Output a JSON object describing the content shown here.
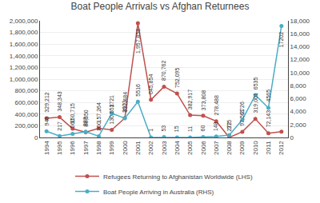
{
  "chart_data": {
    "type": "line",
    "title": "Boat People Arrivals vs Afghan Returnees",
    "x": [
      1994,
      1995,
      1996,
      1997,
      1998,
      1999,
      2000,
      2001,
      2002,
      2003,
      2004,
      2005,
      2006,
      2007,
      2008,
      2009,
      2010,
      2011,
      2012
    ],
    "series": [
      {
        "name": "Refugees Returning to Afghanistan Worldwide (LHS)",
        "color": "#c0504d",
        "marker": "circle",
        "axis": "y",
        "values": [
          329212,
          348343,
          150715,
          88550,
          157264,
          130551,
          332484,
          1957858,
          645854,
          870762,
          752095,
          382917,
          373808,
          278488,
          272,
          97561,
          319001,
          72143,
          100000
        ],
        "value_labels": [
          "329,212",
          "348,343",
          "150,715",
          "88,550",
          "157,264",
          "130,551",
          "332,484",
          "1,957,858",
          "645,854",
          "870,762",
          "752,095",
          "382,917",
          "373,808",
          "278,488",
          "272",
          "97,561",
          "319,001",
          "72,143",
          null
        ]
      },
      {
        "name": "Boat People Arriving in Australia (RHS)",
        "color": "#4bacc6",
        "marker": "circle",
        "axis": "y2",
        "values": [
          946,
          217,
          560,
          888,
          200,
          3721,
          2973,
          5516,
          1,
          53,
          15,
          11,
          60,
          148,
          375,
          2726,
          6535,
          4565,
          17202
        ]
      }
    ],
    "xlim": [
      1993.5,
      2012.5
    ],
    "xticks": [
      1994,
      1995,
      1996,
      1997,
      1998,
      1999,
      2000,
      2001,
      2002,
      2003,
      2004,
      2005,
      2006,
      2007,
      2008,
      2009,
      2010,
      2011,
      2012
    ],
    "ylim": [
      0,
      2000000
    ],
    "yticks": [
      0,
      {
        "value": 200000,
        "label": "200,000"
      },
      {
        "value": 400000,
        "label": "400,000"
      },
      {
        "value": 600000,
        "label": "600,000"
      },
      {
        "value": 800000,
        "label": "800,000"
      },
      {
        "value": 1000000,
        "label": "1,000,000"
      },
      {
        "value": 1200000,
        "label": "1,200,000"
      },
      {
        "value": 1400000,
        "label": "1,400,000"
      },
      {
        "value": 1600000,
        "label": "1,600,000"
      },
      {
        "value": 1800000,
        "label": "1,800,000"
      },
      {
        "value": 2000000,
        "label": "2,000,000"
      }
    ],
    "y2lim": [
      0,
      18000
    ],
    "y2ticks": [
      0,
      {
        "value": 2000,
        "label": "2,000"
      },
      {
        "value": 4000,
        "label": "4,000"
      },
      {
        "value": 6000,
        "label": "6,000"
      },
      {
        "value": 8000,
        "label": "8,000"
      },
      {
        "value": 10000,
        "label": "10,000"
      },
      {
        "value": 12000,
        "label": "12,000"
      },
      {
        "value": 14000,
        "label": "14,000"
      },
      {
        "value": 16000,
        "label": "16,000"
      },
      {
        "value": 18000,
        "label": "18,000"
      }
    ],
    "grid": true,
    "legend": "bottom",
    "data_labels": true
  }
}
